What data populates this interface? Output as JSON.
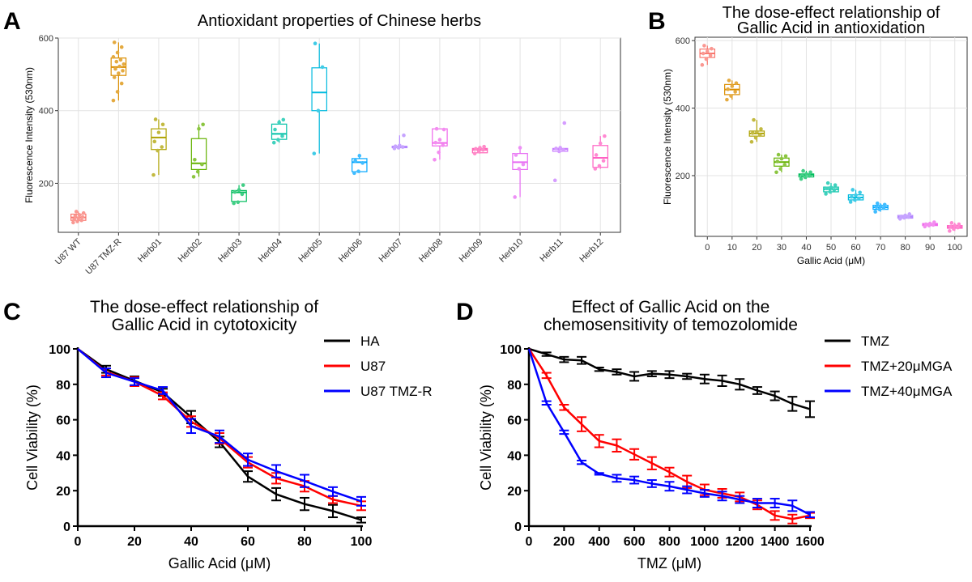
{
  "panels": {
    "a": "A",
    "b": "B",
    "c": "C",
    "d": "D"
  },
  "chart_data": [
    {
      "panel": "A",
      "type": "box",
      "title": "Antioxidant properties of Chinese herbs",
      "xlabel": "",
      "ylabel": "Fluorescence Intensity (530nm)",
      "ylim": [
        65,
        600
      ],
      "yticks": [
        200,
        400,
        600
      ],
      "grid": true,
      "categories": [
        "U87 WT",
        "U87 TMZ-R",
        "Herb01",
        "Herb02",
        "Herb03",
        "Herb04",
        "Herb05",
        "Herb06",
        "Herb07",
        "Herb08",
        "Herb09",
        "Herb10",
        "Herb11",
        "Herb12"
      ],
      "colors": [
        "#F8766D",
        "#DB8E00",
        "#AEA200",
        "#64B200",
        "#00BD5C",
        "#00C1A7",
        "#00BADE",
        "#00A6FF",
        "#B385FF",
        "#EF67EB",
        "#FF63B6",
        "#E76BF3",
        "#C77CFF",
        "#FF61C3"
      ],
      "boxes": [
        {
          "q1": 98,
          "median": 106,
          "q3": 115,
          "min": 92,
          "max": 122,
          "points": [
            92,
            95,
            98,
            101,
            104,
            107,
            110,
            113,
            118,
            122
          ]
        },
        {
          "q1": 497,
          "median": 520,
          "q3": 545,
          "min": 428,
          "max": 588,
          "points": [
            428,
            452,
            475,
            492,
            503,
            510,
            515,
            522,
            528,
            535,
            540,
            548,
            560,
            575,
            588
          ]
        },
        {
          "q1": 293,
          "median": 326,
          "q3": 350,
          "min": 223,
          "max": 376,
          "points": [
            223,
            290,
            300,
            315,
            340,
            362,
            376
          ]
        },
        {
          "q1": 238,
          "median": 255,
          "q3": 323,
          "min": 218,
          "max": 362,
          "points": [
            218,
            232,
            252,
            265,
            350,
            362
          ]
        },
        {
          "q1": 150,
          "median": 175,
          "q3": 180,
          "min": 145,
          "max": 195,
          "points": [
            145,
            148,
            170,
            176,
            182,
            195
          ]
        },
        {
          "q1": 321,
          "median": 336,
          "q3": 363,
          "min": 312,
          "max": 375,
          "points": [
            312,
            320,
            330,
            348,
            368,
            375
          ]
        },
        {
          "q1": 400,
          "median": 450,
          "q3": 518,
          "min": 282,
          "max": 585,
          "points": [
            282,
            400,
            520,
            585
          ]
        },
        {
          "q1": 232,
          "median": 258,
          "q3": 268,
          "min": 228,
          "max": 276,
          "points": [
            228,
            233,
            256,
            262,
            276
          ]
        },
        {
          "q1": 298,
          "median": 300,
          "q3": 302,
          "min": 296,
          "max": 332,
          "points": [
            296,
            298,
            300,
            302,
            304,
            332
          ]
        },
        {
          "q1": 303,
          "median": 311,
          "q3": 350,
          "min": 265,
          "max": 350,
          "points": [
            265,
            285,
            305,
            312,
            320,
            348,
            350
          ]
        },
        {
          "q1": 284,
          "median": 292,
          "q3": 296,
          "min": 282,
          "max": 301,
          "points": [
            282,
            288,
            292,
            295,
            298,
            301
          ]
        },
        {
          "q1": 238,
          "median": 258,
          "q3": 282,
          "min": 162,
          "max": 298,
          "points": [
            162,
            240,
            252,
            278,
            298
          ]
        },
        {
          "q1": 288,
          "median": 294,
          "q3": 296,
          "min": 285,
          "max": 298,
          "points": [
            208,
            288,
            292,
            296,
            298,
            366
          ]
        },
        {
          "q1": 244,
          "median": 270,
          "q3": 304,
          "min": 240,
          "max": 330,
          "points": [
            240,
            248,
            262,
            278,
            310,
            330
          ]
        }
      ]
    },
    {
      "panel": "B",
      "type": "box",
      "title": "The dose-effect relationship of\nGallic Acid in antioxidation",
      "xlabel": "Gallic Acid (μM)",
      "ylabel": "Fluorescence Intensity (530nm)",
      "ylim": [
        20,
        610
      ],
      "yticks": [
        200,
        400,
        600
      ],
      "grid": true,
      "categories": [
        "0",
        "10",
        "20",
        "30",
        "40",
        "50",
        "60",
        "70",
        "80",
        "90",
        "100"
      ],
      "colors": [
        "#F8766D",
        "#DB8E00",
        "#AEA200",
        "#64B200",
        "#00BD5C",
        "#00C1A7",
        "#00BADE",
        "#00A6FF",
        "#B385FF",
        "#EF67EB",
        "#FF61C3"
      ],
      "boxes": [
        {
          "q1": 550,
          "median": 562,
          "q3": 575,
          "min": 528,
          "max": 585,
          "points": [
            528,
            545,
            556,
            562,
            568,
            576,
            585
          ]
        },
        {
          "q1": 440,
          "median": 455,
          "q3": 470,
          "min": 425,
          "max": 482,
          "points": [
            425,
            436,
            448,
            456,
            465,
            474,
            482
          ]
        },
        {
          "q1": 317,
          "median": 325,
          "q3": 332,
          "min": 300,
          "max": 365,
          "points": [
            300,
            312,
            320,
            326,
            330,
            338,
            365
          ]
        },
        {
          "q1": 228,
          "median": 240,
          "q3": 252,
          "min": 210,
          "max": 262,
          "points": [
            210,
            220,
            232,
            242,
            250,
            258,
            262
          ]
        },
        {
          "q1": 196,
          "median": 202,
          "q3": 205,
          "min": 190,
          "max": 214,
          "points": [
            190,
            195,
            199,
            202,
            205,
            210,
            214
          ]
        },
        {
          "q1": 152,
          "median": 160,
          "q3": 166,
          "min": 146,
          "max": 178,
          "points": [
            146,
            152,
            158,
            162,
            165,
            172,
            178
          ]
        },
        {
          "q1": 128,
          "median": 135,
          "q3": 143,
          "min": 122,
          "max": 158,
          "points": [
            122,
            128,
            133,
            137,
            142,
            150,
            158
          ]
        },
        {
          "q1": 100,
          "median": 106,
          "q3": 112,
          "min": 93,
          "max": 118,
          "points": [
            93,
            100,
            104,
            107,
            110,
            114,
            118
          ]
        },
        {
          "q1": 74,
          "median": 78,
          "q3": 82,
          "min": 72,
          "max": 86,
          "points": [
            72,
            75,
            77,
            79,
            82,
            86
          ]
        },
        {
          "q1": 52,
          "median": 55,
          "q3": 58,
          "min": 49,
          "max": 62,
          "points": [
            49,
            52,
            54,
            56,
            58,
            62
          ]
        },
        {
          "q1": 44,
          "median": 48,
          "q3": 52,
          "min": 36,
          "max": 60,
          "points": [
            36,
            42,
            46,
            49,
            52,
            56,
            60
          ]
        }
      ]
    },
    {
      "panel": "C",
      "type": "line",
      "title": "The dose-effect relationship of\nGallic Acid in cytotoxicity",
      "xlabel": "Gallic Acid (μM)",
      "ylabel": "Cell Viability (%)",
      "xlim": [
        0,
        100
      ],
      "ylim": [
        0,
        100
      ],
      "xticks": [
        0,
        20,
        40,
        60,
        80,
        100
      ],
      "yticks": [
        0,
        20,
        40,
        60,
        80,
        100
      ],
      "legend": "top-right",
      "x": [
        0,
        10,
        20,
        30,
        40,
        50,
        60,
        70,
        80,
        90,
        100
      ],
      "series": [
        {
          "name": "HA",
          "color": "#000000",
          "values": [
            100,
            88.5,
            82,
            75.5,
            61.5,
            47.5,
            28,
            18,
            12.5,
            8.5,
            3.5
          ],
          "errors": [
            0,
            2,
            2.5,
            2,
            3.5,
            3,
            3,
            3.5,
            3.5,
            3.5,
            1.5
          ]
        },
        {
          "name": "U87",
          "color": "#FF0000",
          "values": [
            100,
            87,
            81.5,
            73.5,
            59,
            49.5,
            36,
            27,
            22.5,
            15,
            11.5
          ],
          "errors": [
            0,
            2,
            2.5,
            2,
            3,
            3,
            3,
            3,
            3,
            2,
            2.5
          ]
        },
        {
          "name": "U87 TMZ-R",
          "color": "#0000FF",
          "values": [
            100,
            86.5,
            81.5,
            76.5,
            56.5,
            50.5,
            37.5,
            31,
            25.5,
            19.5,
            14
          ],
          "errors": [
            0,
            2.5,
            2,
            2,
            4,
            3.5,
            3.5,
            3.5,
            3.5,
            2.5,
            2.5
          ]
        }
      ]
    },
    {
      "panel": "D",
      "type": "line",
      "title": "Effect of Gallic Acid on the\nchemosensitivity of temozolomide",
      "xlabel": "TMZ (μM)",
      "ylabel": "Cell Viability (%)",
      "xlim": [
        0,
        1600
      ],
      "ylim": [
        0,
        100
      ],
      "xticks": [
        0,
        200,
        400,
        600,
        800,
        1000,
        1200,
        1400,
        1600
      ],
      "yticks": [
        0,
        20,
        40,
        60,
        80,
        100
      ],
      "legend": "top-right",
      "x": [
        0,
        100,
        200,
        300,
        400,
        500,
        600,
        700,
        800,
        900,
        1000,
        1100,
        1200,
        1300,
        1400,
        1500,
        1600
      ],
      "series": [
        {
          "name": "TMZ",
          "color": "#000000",
          "values": [
            100,
            97,
            94,
            93.5,
            88.5,
            87,
            84.5,
            86,
            85.5,
            84.5,
            83,
            82,
            80,
            76.5,
            73.5,
            69,
            66
          ],
          "errors": [
            0,
            1,
            1.5,
            2,
            1,
            1.5,
            2.5,
            1.5,
            2,
            1.5,
            2.5,
            3,
            3,
            2,
            2.5,
            4,
            4.5
          ]
        },
        {
          "name": "TMZ+20μMGA",
          "color": "#FF0000",
          "values": [
            100,
            85,
            67,
            57.5,
            48,
            45.5,
            40.5,
            35.5,
            30.5,
            25,
            20.5,
            18.5,
            16.5,
            12,
            6,
            4,
            6
          ],
          "errors": [
            0,
            1.5,
            1.5,
            4,
            3.5,
            3.5,
            3,
            3.5,
            2.5,
            3.5,
            3,
            2.5,
            2.5,
            2.5,
            2.5,
            2.5,
            1.5
          ]
        },
        {
          "name": "TMZ+40μMGA",
          "color": "#0000FF",
          "values": [
            100,
            69.5,
            53,
            36,
            29.5,
            27,
            26,
            24,
            22.5,
            20.5,
            18.5,
            17,
            15,
            13,
            13,
            11.5,
            6.5
          ],
          "errors": [
            0,
            1,
            1,
            1,
            0.5,
            2,
            2,
            2,
            2.5,
            2,
            2,
            2.5,
            2,
            2.5,
            2.5,
            3,
            1.5
          ]
        }
      ]
    }
  ]
}
